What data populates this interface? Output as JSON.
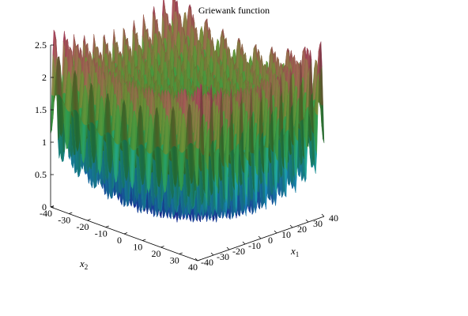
{
  "chart_data": {
    "type": "surface3d",
    "title": "Griewank function",
    "function": "1 + (x1^2 + x2^2)/4000 - cos(x1)*cos(x2/sqrt(2))",
    "x1": {
      "label": "x",
      "subscript": "1",
      "range": [
        -40,
        40
      ],
      "ticks": [
        "-40",
        "-30",
        "-20",
        "-10",
        "0",
        "10",
        "20",
        "30",
        "40"
      ]
    },
    "x2": {
      "label": "x",
      "subscript": "2",
      "range": [
        -40,
        40
      ],
      "ticks": [
        "-40",
        "-30",
        "-20",
        "-10",
        "0",
        "10",
        "20",
        "30",
        "40"
      ]
    },
    "z": {
      "range": [
        0,
        2.5
      ],
      "ticks": [
        "0",
        "0.5",
        "1",
        "1.5",
        "2",
        "2.5"
      ]
    },
    "colormap": [
      "#2a1a8f",
      "#2340c8",
      "#1f9fd8",
      "#22b8a8",
      "#2fa85a",
      "#4aa544",
      "#7a9a3c",
      "#b0785a",
      "#c0506a"
    ],
    "grid": false,
    "legend": "none"
  }
}
